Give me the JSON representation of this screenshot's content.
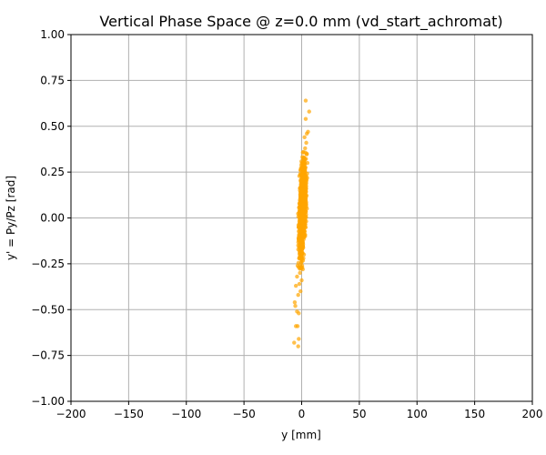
{
  "chart_data": {
    "type": "scatter",
    "title": "Vertical Phase Space @ z=0.0 mm (vd_start_achromat)",
    "xlabel": "y [mm]",
    "ylabel": "y' = Py/Pz [rad]",
    "xlim": [
      -200,
      200
    ],
    "ylim": [
      -1.0,
      1.0
    ],
    "xticks": [
      "−200",
      "−150",
      "−100",
      "−50",
      "0",
      "50",
      "100",
      "150",
      "200"
    ],
    "yticks": [
      "−1.00",
      "−0.75",
      "−0.50",
      "−0.25",
      "0.00",
      "0.25",
      "0.50",
      "0.75",
      "1.00"
    ],
    "grid": true,
    "point_color": "#FFA500",
    "series": [
      {
        "points": [
          [
            3.5,
            0.64
          ],
          [
            6.5,
            0.58
          ],
          [
            3.5,
            0.54
          ],
          [
            5.5,
            0.47
          ],
          [
            4.5,
            0.46
          ],
          [
            2.5,
            0.44
          ],
          [
            4.0,
            0.41
          ],
          [
            3.0,
            0.38
          ],
          [
            1.5,
            0.36
          ],
          [
            4.5,
            0.35
          ],
          [
            2.0,
            0.33
          ],
          [
            5.0,
            0.3
          ],
          [
            0.5,
            0.28
          ],
          [
            -1.0,
            0.26
          ],
          [
            3.0,
            0.25
          ],
          [
            1.0,
            0.22
          ],
          [
            -0.5,
            0.2
          ],
          [
            4.0,
            0.19
          ],
          [
            2.0,
            0.17
          ],
          [
            -1.5,
            0.15
          ],
          [
            0.5,
            0.13
          ],
          [
            3.5,
            0.12
          ],
          [
            1.5,
            0.1
          ],
          [
            -2.0,
            0.08
          ],
          [
            0.0,
            0.06
          ],
          [
            2.5,
            0.05
          ],
          [
            -1.0,
            0.03
          ],
          [
            1.0,
            0.01
          ],
          [
            3.0,
            0.0
          ],
          [
            -0.5,
            -0.02
          ],
          [
            1.5,
            -0.04
          ],
          [
            -2.5,
            -0.05
          ],
          [
            0.0,
            -0.07
          ],
          [
            2.0,
            -0.09
          ],
          [
            -1.5,
            -0.11
          ],
          [
            1.0,
            -0.13
          ],
          [
            -3.0,
            -0.15
          ],
          [
            0.5,
            -0.17
          ],
          [
            -1.0,
            -0.19
          ],
          [
            2.0,
            -0.2
          ],
          [
            -2.0,
            -0.22
          ],
          [
            0.0,
            -0.24
          ],
          [
            -3.5,
            -0.26
          ],
          [
            1.0,
            -0.28
          ],
          [
            -1.5,
            -0.3
          ],
          [
            -4.0,
            -0.32
          ],
          [
            0.0,
            -0.34
          ],
          [
            -2.0,
            -0.36
          ],
          [
            -5.0,
            -0.37
          ],
          [
            -1.0,
            -0.4
          ],
          [
            -3.0,
            -0.42
          ],
          [
            -6.0,
            -0.46
          ],
          [
            -5.5,
            -0.48
          ],
          [
            -4.0,
            -0.51
          ],
          [
            -2.5,
            -0.52
          ],
          [
            -5.0,
            -0.59
          ],
          [
            -3.5,
            -0.59
          ],
          [
            -2.5,
            -0.66
          ],
          [
            -6.5,
            -0.68
          ],
          [
            -3.0,
            -0.7
          ],
          [
            2.0,
            0.09
          ],
          [
            3.0,
            -0.05
          ],
          [
            1.0,
            0.16
          ],
          [
            -0.5,
            -0.12
          ],
          [
            2.5,
            0.21
          ],
          [
            -1.5,
            -0.18
          ],
          [
            4.0,
            0.06
          ],
          [
            0.0,
            0.27
          ],
          [
            1.5,
            -0.22
          ],
          [
            3.5,
            0.15
          ],
          [
            -2.0,
            0.02
          ],
          [
            2.0,
            0.32
          ],
          [
            0.5,
            -0.27
          ],
          [
            -1.0,
            0.11
          ],
          [
            3.0,
            -0.1
          ]
        ]
      }
    ]
  }
}
